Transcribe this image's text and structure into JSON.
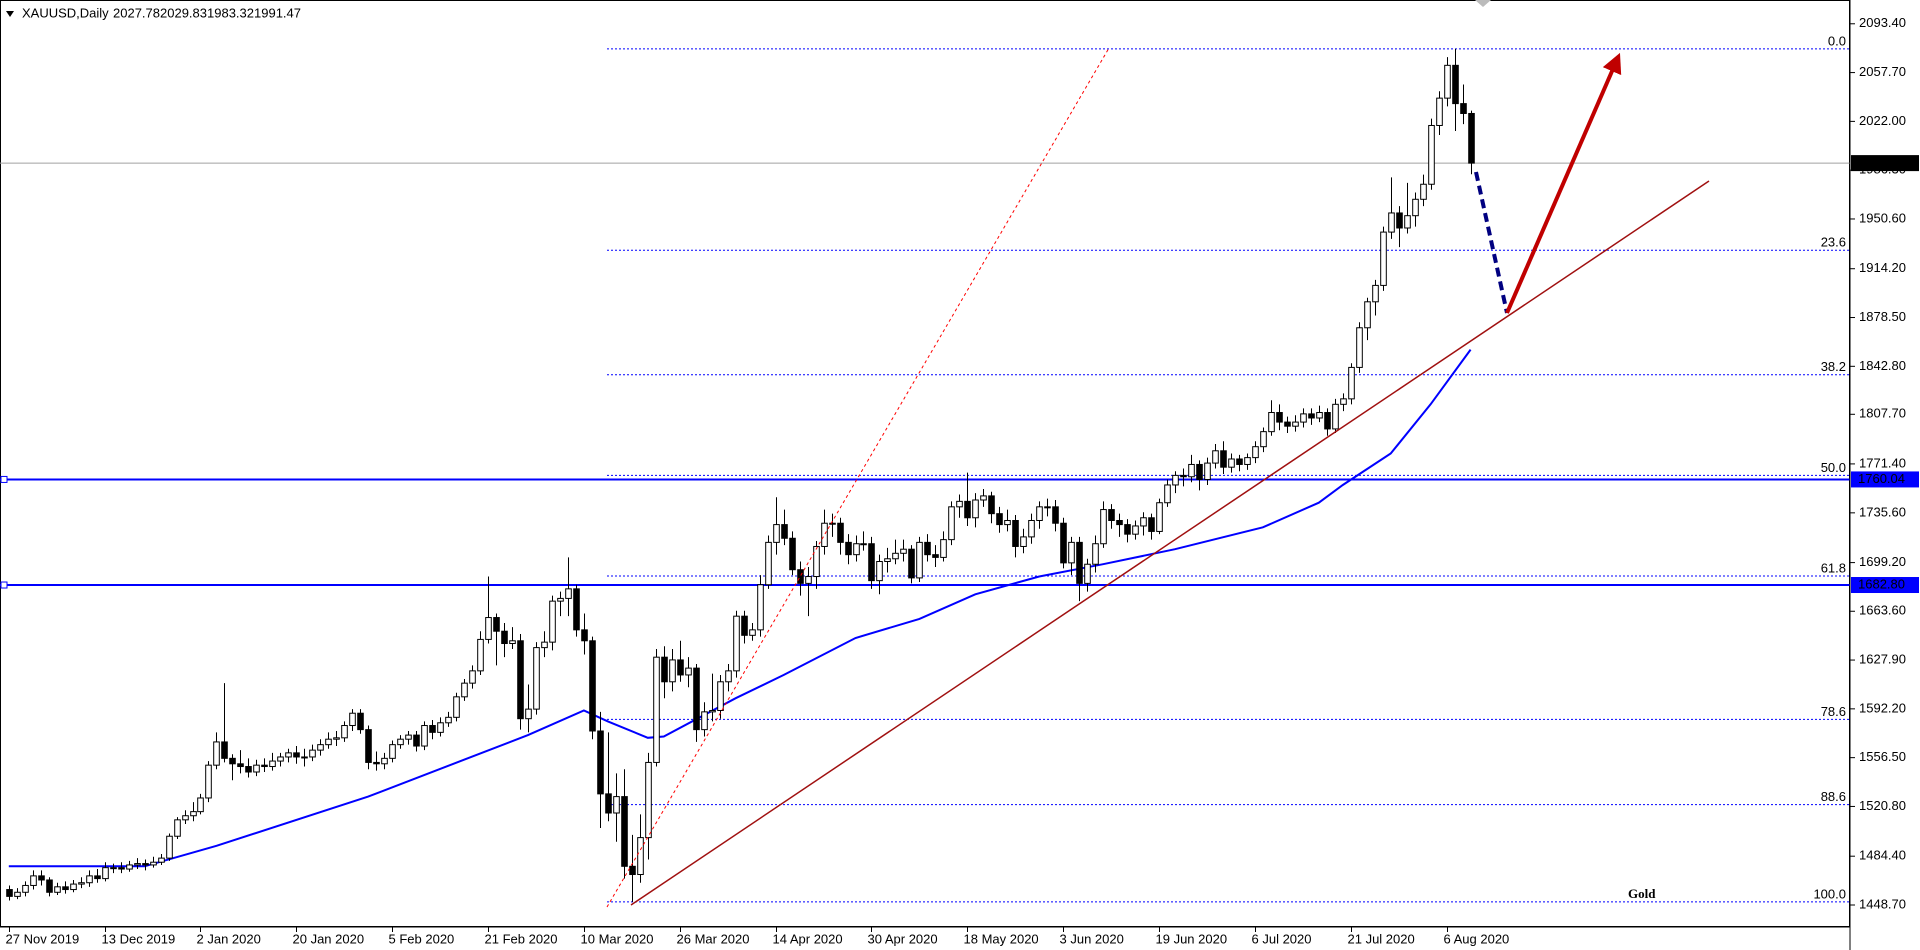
{
  "chart_data": {
    "type": "candlestick",
    "symbol": "XAUUSD,Daily",
    "header_values": [
      2027.78,
      2029.83,
      1983.32,
      1991.47
    ],
    "up_color": "#ffffff",
    "down_color": "#000000",
    "outline_color": "#000000",
    "ohlc": [
      [
        1460,
        1463,
        1452,
        1455
      ],
      [
        1455,
        1461,
        1453,
        1458
      ],
      [
        1458,
        1466,
        1455,
        1463
      ],
      [
        1463,
        1474,
        1460,
        1470
      ],
      [
        1470,
        1474,
        1463,
        1467
      ],
      [
        1467,
        1469,
        1455,
        1458
      ],
      [
        1458,
        1465,
        1456,
        1462
      ],
      [
        1462,
        1466,
        1457,
        1460
      ],
      [
        1460,
        1467,
        1458,
        1464
      ],
      [
        1464,
        1469,
        1461,
        1465
      ],
      [
        1465,
        1474,
        1462,
        1470
      ],
      [
        1470,
        1475,
        1465,
        1468
      ],
      [
        1468,
        1480,
        1466,
        1476
      ],
      [
        1476,
        1479,
        1472,
        1476
      ],
      [
        1476,
        1480,
        1472,
        1475
      ],
      [
        1475,
        1481,
        1473,
        1478
      ],
      [
        1478,
        1483,
        1475,
        1479
      ],
      [
        1479,
        1482,
        1474,
        1478
      ],
      [
        1478,
        1484,
        1476,
        1480
      ],
      [
        1480,
        1486,
        1478,
        1483
      ],
      [
        1483,
        1501,
        1481,
        1499
      ],
      [
        1499,
        1513,
        1497,
        1511
      ],
      [
        1511,
        1518,
        1508,
        1514
      ],
      [
        1514,
        1524,
        1510,
        1517
      ],
      [
        1517,
        1530,
        1515,
        1527
      ],
      [
        1527,
        1554,
        1524,
        1551
      ],
      [
        1551,
        1575,
        1548,
        1568
      ],
      [
        1568,
        1611,
        1553,
        1556
      ],
      [
        1556,
        1559,
        1540,
        1552
      ],
      [
        1552,
        1562,
        1545,
        1550
      ],
      [
        1550,
        1556,
        1542,
        1546
      ],
      [
        1546,
        1555,
        1543,
        1551
      ],
      [
        1551,
        1556,
        1546,
        1550
      ],
      [
        1550,
        1560,
        1547,
        1554
      ],
      [
        1554,
        1560,
        1550,
        1557
      ],
      [
        1557,
        1563,
        1553,
        1560
      ],
      [
        1560,
        1565,
        1552,
        1557
      ],
      [
        1557,
        1563,
        1550,
        1557
      ],
      [
        1557,
        1566,
        1554,
        1562
      ],
      [
        1562,
        1570,
        1558,
        1566
      ],
      [
        1566,
        1575,
        1563,
        1570
      ],
      [
        1570,
        1576,
        1565,
        1571
      ],
      [
        1571,
        1583,
        1568,
        1580
      ],
      [
        1580,
        1592,
        1576,
        1589
      ],
      [
        1589,
        1592,
        1574,
        1577
      ],
      [
        1577,
        1580,
        1548,
        1553
      ],
      [
        1553,
        1561,
        1547,
        1552
      ],
      [
        1552,
        1560,
        1548,
        1556
      ],
      [
        1556,
        1569,
        1553,
        1566
      ],
      [
        1566,
        1573,
        1563,
        1570
      ],
      [
        1570,
        1576,
        1566,
        1573
      ],
      [
        1573,
        1576,
        1561,
        1565
      ],
      [
        1565,
        1583,
        1562,
        1580
      ],
      [
        1580,
        1584,
        1570,
        1575
      ],
      [
        1575,
        1586,
        1572,
        1582
      ],
      [
        1582,
        1590,
        1579,
        1586
      ],
      [
        1586,
        1604,
        1583,
        1601
      ],
      [
        1601,
        1614,
        1598,
        1611
      ],
      [
        1611,
        1624,
        1607,
        1620
      ],
      [
        1620,
        1649,
        1617,
        1643
      ],
      [
        1643,
        1689,
        1640,
        1659
      ],
      [
        1659,
        1662,
        1624,
        1649
      ],
      [
        1649,
        1655,
        1630,
        1640
      ],
      [
        1640,
        1652,
        1636,
        1642
      ],
      [
        1642,
        1647,
        1577,
        1585
      ],
      [
        1585,
        1610,
        1575,
        1592
      ],
      [
        1592,
        1641,
        1588,
        1637
      ],
      [
        1637,
        1649,
        1630,
        1641
      ],
      [
        1641,
        1675,
        1635,
        1671
      ],
      [
        1671,
        1678,
        1660,
        1673
      ],
      [
        1673,
        1703,
        1660,
        1680
      ],
      [
        1680,
        1683,
        1645,
        1650
      ],
      [
        1650,
        1662,
        1632,
        1642
      ],
      [
        1642,
        1645,
        1570,
        1576
      ],
      [
        1576,
        1590,
        1505,
        1530
      ],
      [
        1530,
        1575,
        1510,
        1516
      ],
      [
        1516,
        1545,
        1495,
        1528
      ],
      [
        1528,
        1548,
        1468,
        1477
      ],
      [
        1477,
        1500,
        1451,
        1471
      ],
      [
        1471,
        1515,
        1465,
        1498
      ],
      [
        1498,
        1560,
        1482,
        1553
      ],
      [
        1553,
        1636,
        1550,
        1630
      ],
      [
        1630,
        1638,
        1600,
        1612
      ],
      [
        1612,
        1636,
        1605,
        1628
      ],
      [
        1628,
        1642,
        1612,
        1617
      ],
      [
        1617,
        1630,
        1608,
        1622
      ],
      [
        1622,
        1625,
        1568,
        1577
      ],
      [
        1577,
        1597,
        1572,
        1590
      ],
      [
        1590,
        1618,
        1583,
        1591
      ],
      [
        1591,
        1617,
        1585,
        1612
      ],
      [
        1612,
        1625,
        1605,
        1620
      ],
      [
        1620,
        1664,
        1615,
        1660
      ],
      [
        1660,
        1664,
        1640,
        1646
      ],
      [
        1646,
        1655,
        1642,
        1650
      ],
      [
        1650,
        1690,
        1645,
        1683
      ],
      [
        1683,
        1719,
        1680,
        1714
      ],
      [
        1714,
        1747,
        1705,
        1727
      ],
      [
        1727,
        1738,
        1712,
        1717
      ],
      [
        1717,
        1722,
        1690,
        1694
      ],
      [
        1694,
        1700,
        1675,
        1684
      ],
      [
        1684,
        1696,
        1660,
        1689
      ],
      [
        1689,
        1715,
        1680,
        1711
      ],
      [
        1711,
        1738,
        1705,
        1728
      ],
      [
        1728,
        1735,
        1718,
        1728
      ],
      [
        1728,
        1732,
        1705,
        1714
      ],
      [
        1714,
        1720,
        1698,
        1705
      ],
      [
        1705,
        1719,
        1700,
        1713
      ],
      [
        1713,
        1722,
        1708,
        1713
      ],
      [
        1713,
        1718,
        1680,
        1686
      ],
      [
        1686,
        1705,
        1676,
        1700
      ],
      [
        1700,
        1710,
        1692,
        1702
      ],
      [
        1702,
        1716,
        1698,
        1706
      ],
      [
        1706,
        1716,
        1700,
        1709
      ],
      [
        1709,
        1712,
        1684,
        1688
      ],
      [
        1688,
        1718,
        1685,
        1714
      ],
      [
        1714,
        1720,
        1700,
        1705
      ],
      [
        1705,
        1712,
        1696,
        1703
      ],
      [
        1703,
        1722,
        1700,
        1716
      ],
      [
        1716,
        1744,
        1712,
        1740
      ],
      [
        1740,
        1749,
        1732,
        1744
      ],
      [
        1744,
        1765,
        1726,
        1732
      ],
      [
        1732,
        1750,
        1725,
        1745
      ],
      [
        1745,
        1753,
        1740,
        1748
      ],
      [
        1748,
        1751,
        1728,
        1735
      ],
      [
        1735,
        1740,
        1721,
        1727
      ],
      [
        1727,
        1738,
        1722,
        1730
      ],
      [
        1730,
        1734,
        1703,
        1711
      ],
      [
        1711,
        1724,
        1706,
        1718
      ],
      [
        1718,
        1735,
        1713,
        1730
      ],
      [
        1730,
        1744,
        1724,
        1740
      ],
      [
        1740,
        1746,
        1733,
        1740
      ],
      [
        1740,
        1745,
        1722,
        1728
      ],
      [
        1728,
        1732,
        1695,
        1699
      ],
      [
        1699,
        1718,
        1690,
        1714
      ],
      [
        1714,
        1718,
        1671,
        1684
      ],
      [
        1684,
        1702,
        1678,
        1698
      ],
      [
        1698,
        1719,
        1692,
        1713
      ],
      [
        1713,
        1744,
        1710,
        1738
      ],
      [
        1738,
        1742,
        1724,
        1730
      ],
      [
        1730,
        1735,
        1718,
        1727
      ],
      [
        1727,
        1731,
        1714,
        1720
      ],
      [
        1720,
        1730,
        1716,
        1726
      ],
      [
        1726,
        1736,
        1719,
        1732
      ],
      [
        1732,
        1735,
        1716,
        1722
      ],
      [
        1722,
        1746,
        1720,
        1743
      ],
      [
        1743,
        1760,
        1740,
        1756
      ],
      [
        1756,
        1766,
        1750,
        1763
      ],
      [
        1763,
        1768,
        1755,
        1762
      ],
      [
        1762,
        1778,
        1758,
        1771
      ],
      [
        1771,
        1774,
        1752,
        1760
      ],
      [
        1760,
        1776,
        1756,
        1772
      ],
      [
        1772,
        1786,
        1768,
        1781
      ],
      [
        1781,
        1788,
        1764,
        1769
      ],
      [
        1769,
        1779,
        1765,
        1775
      ],
      [
        1775,
        1778,
        1766,
        1771
      ],
      [
        1771,
        1779,
        1767,
        1776
      ],
      [
        1776,
        1788,
        1772,
        1784
      ],
      [
        1784,
        1798,
        1780,
        1795
      ],
      [
        1795,
        1818,
        1792,
        1809
      ],
      [
        1809,
        1815,
        1796,
        1802
      ],
      [
        1802,
        1806,
        1794,
        1799
      ],
      [
        1799,
        1807,
        1795,
        1802
      ],
      [
        1802,
        1812,
        1798,
        1808
      ],
      [
        1808,
        1812,
        1800,
        1805
      ],
      [
        1805,
        1814,
        1802,
        1809
      ],
      [
        1809,
        1812,
        1792,
        1797
      ],
      [
        1797,
        1819,
        1794,
        1815
      ],
      [
        1815,
        1823,
        1810,
        1819
      ],
      [
        1819,
        1845,
        1815,
        1842
      ],
      [
        1842,
        1875,
        1838,
        1871
      ],
      [
        1871,
        1893,
        1862,
        1890
      ],
      [
        1890,
        1906,
        1880,
        1902
      ],
      [
        1902,
        1945,
        1898,
        1941
      ],
      [
        1941,
        1981,
        1936,
        1955
      ],
      [
        1955,
        1960,
        1930,
        1944
      ],
      [
        1944,
        1977,
        1940,
        1953
      ],
      [
        1953,
        1970,
        1945,
        1965
      ],
      [
        1965,
        1983,
        1960,
        1976
      ],
      [
        1976,
        2024,
        1972,
        2019
      ],
      [
        2019,
        2044,
        2012,
        2039
      ],
      [
        2039,
        2069,
        2033,
        2063
      ],
      [
        2063,
        2075,
        2015,
        2035
      ],
      [
        2035,
        2049,
        2020,
        2027.78
      ],
      [
        2027.78,
        2029.83,
        1983.32,
        1991.47
      ]
    ],
    "ma": {
      "color": "#0000ff",
      "x": [
        0,
        17,
        26,
        45,
        57,
        65,
        72,
        75,
        80,
        82,
        91,
        97,
        106,
        114,
        121,
        129,
        137,
        146,
        157,
        164,
        167,
        173,
        178,
        183
      ],
      "values": [
        1477,
        1477,
        1492,
        1528,
        1555,
        1573,
        1591,
        1583,
        1571,
        1572,
        1600,
        1617,
        1644,
        1658,
        1676,
        1689,
        1698,
        1709,
        1725,
        1743,
        1756,
        1779,
        1815,
        1855
      ]
    },
    "current_price": 1991.47,
    "current_price_color": "#000000",
    "hline_color": "#0000ff",
    "hlines": [
      {
        "value": 1760.04,
        "label": "1760.04"
      },
      {
        "value": 1682.8,
        "label": "1682.80"
      }
    ],
    "fib_color": "#0000ff",
    "fib_ratios": [
      "0.0",
      "23.6",
      "38.2",
      "50.0",
      "61.8",
      "78.6",
      "88.6",
      "100.0"
    ],
    "fib_prices": [
      2075,
      1927.7,
      1836.6,
      1763,
      1689.4,
      1584.5,
      1522.1,
      1451
    ],
    "annotation": "Gold",
    "annotation_color": "#c00000",
    "xlim": [
      -1.1,
      230.5
    ],
    "xticks": [
      {
        "value": 0,
        "label": "27 Nov 2019"
      },
      {
        "value": 12,
        "label": "13 Dec 2019"
      },
      {
        "value": 24,
        "label": "2 Jan 2020"
      },
      {
        "value": 36,
        "label": "20 Jan 2020"
      },
      {
        "value": 48,
        "label": "5 Feb 2020"
      },
      {
        "value": 60,
        "label": "21 Feb 2020"
      },
      {
        "value": 72,
        "label": "10 Mar 2020"
      },
      {
        "value": 84,
        "label": "26 Mar 2020"
      },
      {
        "value": 96,
        "label": "14 Apr 2020"
      },
      {
        "value": 108,
        "label": "30 Apr 2020"
      },
      {
        "value": 120,
        "label": "18 May 2020"
      },
      {
        "value": 132,
        "label": "3 Jun 2020"
      },
      {
        "value": 144,
        "label": "19 Jun 2020"
      },
      {
        "value": 156,
        "label": "6 Jul 2020"
      },
      {
        "value": 168,
        "label": "21 Jul 2020"
      },
      {
        "value": 180,
        "label": "6 Aug 2020"
      }
    ],
    "ylim": [
      1432.6,
      2110.8
    ],
    "yticks": [
      {
        "value": 2093.4,
        "label": "2093.40"
      },
      {
        "value": 2057.7,
        "label": "2057.70"
      },
      {
        "value": 2022,
        "label": "2022.00"
      },
      {
        "value": 1986.3,
        "label": "1986.30"
      },
      {
        "value": 1950.6,
        "label": "1950.60"
      },
      {
        "value": 1914.2,
        "label": "1914.20"
      },
      {
        "value": 1878.5,
        "label": "1878.50"
      },
      {
        "value": 1842.8,
        "label": "1842.80"
      },
      {
        "value": 1807.7,
        "label": "1807.70"
      },
      {
        "value": 1771.4,
        "label": "1771.40"
      },
      {
        "value": 1735.6,
        "label": "1735.60"
      },
      {
        "value": 1699.2,
        "label": "1699.20"
      },
      {
        "value": 1663.6,
        "label": "1663.60"
      },
      {
        "value": 1627.9,
        "label": "1627.90"
      },
      {
        "value": 1592.2,
        "label": "1592.20"
      },
      {
        "value": 1556.5,
        "label": "1556.50"
      },
      {
        "value": 1520.8,
        "label": "1520.80"
      },
      {
        "value": 1484.4,
        "label": "1484.40"
      },
      {
        "value": 1448.7,
        "label": "1448.70"
      }
    ]
  }
}
